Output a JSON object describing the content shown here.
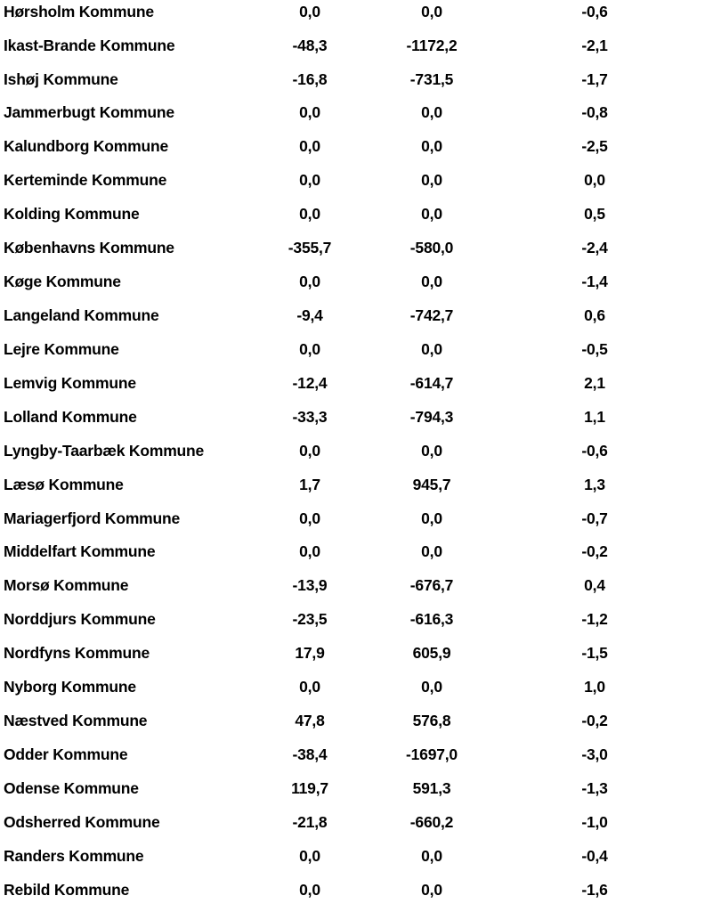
{
  "page": {
    "background": "#ffffff",
    "text_color": "#000000"
  },
  "table": {
    "rows": [
      {
        "name": "Hørsholm Kommune",
        "values": [
          "0,0",
          "0,0",
          "-0,6"
        ]
      },
      {
        "name": "Ikast-Brande Kommune",
        "values": [
          "-48,3",
          "-1172,2",
          "-2,1"
        ]
      },
      {
        "name": "Ishøj Kommune",
        "values": [
          "-16,8",
          "-731,5",
          "-1,7"
        ]
      },
      {
        "name": "Jammerbugt Kommune",
        "values": [
          "0,0",
          "0,0",
          "-0,8"
        ]
      },
      {
        "name": "Kalundborg Kommune",
        "values": [
          "0,0",
          "0,0",
          "-2,5"
        ]
      },
      {
        "name": "Kerteminde Kommune",
        "values": [
          "0,0",
          "0,0",
          "0,0"
        ]
      },
      {
        "name": "Kolding Kommune",
        "values": [
          "0,0",
          "0,0",
          "0,5"
        ]
      },
      {
        "name": "Københavns Kommune",
        "values": [
          "-355,7",
          "-580,0",
          "-2,4"
        ]
      },
      {
        "name": "Køge Kommune",
        "values": [
          "0,0",
          "0,0",
          "-1,4"
        ]
      },
      {
        "name": "Langeland Kommune",
        "values": [
          "-9,4",
          "-742,7",
          "0,6"
        ]
      },
      {
        "name": "Lejre Kommune",
        "values": [
          "0,0",
          "0,0",
          "-0,5"
        ]
      },
      {
        "name": "Lemvig Kommune",
        "values": [
          "-12,4",
          "-614,7",
          "2,1"
        ]
      },
      {
        "name": "Lolland Kommune",
        "values": [
          "-33,3",
          "-794,3",
          "1,1"
        ]
      },
      {
        "name": "Lyngby-Taarbæk Kommune",
        "values": [
          "0,0",
          "0,0",
          "-0,6"
        ]
      },
      {
        "name": "Læsø Kommune",
        "values": [
          "1,7",
          "945,7",
          "1,3"
        ]
      },
      {
        "name": "Mariagerfjord Kommune",
        "values": [
          "0,0",
          "0,0",
          "-0,7"
        ]
      },
      {
        "name": "Middelfart Kommune",
        "values": [
          "0,0",
          "0,0",
          "-0,2"
        ]
      },
      {
        "name": "Morsø Kommune",
        "values": [
          "-13,9",
          "-676,7",
          "0,4"
        ]
      },
      {
        "name": "Norddjurs Kommune",
        "values": [
          "-23,5",
          "-616,3",
          "-1,2"
        ]
      },
      {
        "name": "Nordfyns Kommune",
        "values": [
          "17,9",
          "605,9",
          "-1,5"
        ]
      },
      {
        "name": "Nyborg Kommune",
        "values": [
          "0,0",
          "0,0",
          "1,0"
        ]
      },
      {
        "name": "Næstved Kommune",
        "values": [
          "47,8",
          "576,8",
          "-0,2"
        ]
      },
      {
        "name": "Odder Kommune",
        "values": [
          "-38,4",
          "-1697,0",
          "-3,0"
        ]
      },
      {
        "name": "Odense Kommune",
        "values": [
          "119,7",
          "591,3",
          "-1,3"
        ]
      },
      {
        "name": "Odsherred Kommune",
        "values": [
          "-21,8",
          "-660,2",
          "-1,0"
        ]
      },
      {
        "name": "Randers Kommune",
        "values": [
          "0,0",
          "0,0",
          "-0,4"
        ]
      },
      {
        "name": "Rebild Kommune",
        "values": [
          "0,0",
          "0,0",
          "-1,6"
        ]
      }
    ]
  }
}
